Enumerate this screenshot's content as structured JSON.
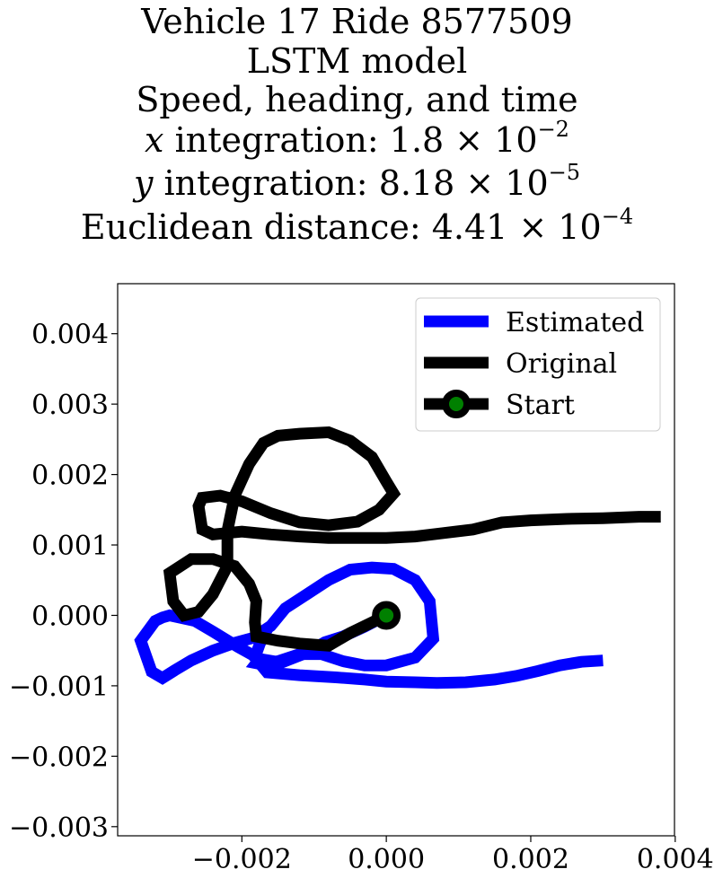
{
  "chart_data": {
    "type": "line",
    "title_lines": [
      "Vehicle 17 Ride 8577509",
      "LSTM model",
      "Speed, heading, and time"
    ],
    "metrics": [
      {
        "var": "x",
        "label": " integration: ",
        "mantissa": "1.8",
        "exponent": "−2"
      },
      {
        "var": "y",
        "label": " integration: ",
        "mantissa": "8.18",
        "exponent": "−5"
      },
      {
        "var": "",
        "label": "Euclidean distance: ",
        "mantissa": "4.41",
        "exponent": "−4"
      }
    ],
    "xlabel": "",
    "ylabel": "",
    "xlim": [
      -0.00372,
      0.00399
    ],
    "ylim": [
      -0.00313,
      0.00471
    ],
    "x_ticks": [
      -0.002,
      0.0,
      0.002,
      0.004
    ],
    "x_tick_labels": [
      "−0.002",
      "0.000",
      "0.002",
      "0.004"
    ],
    "y_ticks": [
      0.004,
      0.003,
      0.002,
      0.001,
      0.0,
      -0.001,
      -0.002,
      -0.003
    ],
    "y_tick_labels": [
      "0.004",
      "0.003",
      "0.002",
      "0.001",
      "0.000",
      "−0.001",
      "−0.002",
      "−0.003"
    ],
    "grid": false,
    "legend_position": "top-right",
    "series": [
      {
        "name": "Estimated",
        "color": "#0000ff",
        "points": [
          [
            0.0,
            0.0
          ],
          [
            -0.0003,
            -0.00016
          ],
          [
            -0.0006,
            -0.0003
          ],
          [
            -0.00085,
            -0.00038
          ],
          [
            -0.0011,
            -0.00053
          ],
          [
            -0.00145,
            -0.00067
          ],
          [
            -0.00175,
            -0.00062
          ],
          [
            -0.00205,
            -0.00045
          ],
          [
            -0.0024,
            -0.00023
          ],
          [
            -0.00265,
            -8e-05
          ],
          [
            -0.003,
            0.0
          ],
          [
            -0.0031,
            -3e-05
          ],
          [
            -0.0032,
            -8e-05
          ],
          [
            -0.0034,
            -0.00036
          ],
          [
            -0.00325,
            -0.0008
          ],
          [
            -0.0031,
            -0.00089
          ],
          [
            -0.00293,
            -0.00078
          ],
          [
            -0.0027,
            -0.00064
          ],
          [
            -0.0024,
            -0.0005
          ],
          [
            -0.0021,
            -0.00039
          ],
          [
            -0.00185,
            -0.00032
          ],
          [
            -0.0017,
            -0.0003
          ],
          [
            -0.00175,
            -0.0004
          ],
          [
            -0.00182,
            -0.0006
          ],
          [
            -0.00165,
            -0.00081
          ],
          [
            -0.0012,
            -0.00085
          ],
          [
            -0.0007,
            -0.00088
          ],
          [
            -0.0003,
            -0.00091
          ],
          [
            0.0,
            -0.00094
          ],
          [
            0.0004,
            -0.00095
          ],
          [
            0.0007,
            -0.00096
          ],
          [
            0.0011,
            -0.00095
          ],
          [
            0.0015,
            -0.00091
          ],
          [
            0.0018,
            -0.00086
          ],
          [
            0.0021,
            -0.00079
          ],
          [
            0.0024,
            -0.00071
          ],
          [
            0.0027,
            -0.00066
          ],
          [
            0.003,
            -0.00064
          ]
        ],
        "overlay_points": [
          [
            -0.00185,
            -0.00032
          ],
          [
            -0.0016,
            -0.00015
          ],
          [
            -0.0014,
            0.0001
          ],
          [
            -0.0011,
            0.0003
          ],
          [
            -0.0008,
            0.0005
          ],
          [
            -0.0005,
            0.00065
          ],
          [
            -0.0002,
            0.00068
          ],
          [
            0.0001,
            0.00066
          ],
          [
            0.0004,
            0.0005
          ],
          [
            0.0006,
            0.0002
          ],
          [
            0.00065,
            -0.00033
          ],
          [
            0.0004,
            -0.0006
          ],
          [
            0.0,
            -0.00071
          ],
          [
            -0.0003,
            -0.00071
          ],
          [
            -0.0006,
            -0.00065
          ],
          [
            -0.0009,
            -0.00055
          ],
          [
            -0.0012,
            -0.00055
          ],
          [
            -0.0015,
            -0.00065
          ],
          [
            -0.0017,
            -0.0007
          ],
          [
            -0.0018,
            -0.00068
          ],
          [
            -0.0017,
            -0.00055
          ]
        ]
      },
      {
        "name": "Original",
        "color": "#000000",
        "points": [
          [
            0.0,
            0.0
          ],
          [
            -0.0002,
            -0.0001
          ],
          [
            -0.0005,
            -0.00025
          ],
          [
            -0.0008,
            -0.00043
          ],
          [
            -0.0012,
            -0.0004
          ],
          [
            -0.0015,
            -0.00036
          ],
          [
            -0.0018,
            -0.0003
          ],
          [
            -0.00182,
            -0.0001
          ],
          [
            -0.0018,
            0.0002
          ],
          [
            -0.0019,
            0.00045
          ],
          [
            -0.0021,
            0.0007
          ],
          [
            -0.0024,
            0.0008
          ],
          [
            -0.0027,
            0.0008
          ],
          [
            -0.003,
            0.0006
          ],
          [
            -0.00295,
            0.0002
          ],
          [
            -0.0028,
            0.0
          ],
          [
            -0.0026,
            5e-05
          ],
          [
            -0.0024,
            0.0003
          ],
          [
            -0.0022,
            0.0007
          ],
          [
            -0.0022,
            0.0012
          ],
          [
            -0.0021,
            0.0017
          ],
          [
            -0.0019,
            0.00215
          ],
          [
            -0.0017,
            0.00245
          ],
          [
            -0.0015,
            0.00255
          ],
          [
            -0.0012,
            0.00258
          ],
          [
            -0.0008,
            0.0026
          ],
          [
            -0.0005,
            0.00248
          ],
          [
            -0.0002,
            0.00225
          ],
          [
            0.0,
            0.0019
          ],
          [
            0.0001,
            0.00173
          ],
          [
            -0.0001,
            0.0015
          ],
          [
            -0.0004,
            0.00133
          ],
          [
            -0.0008,
            0.00128
          ],
          [
            -0.0012,
            0.00132
          ],
          [
            -0.0016,
            0.00145
          ],
          [
            -0.002,
            0.00162
          ],
          [
            -0.0023,
            0.0017
          ],
          [
            -0.00255,
            0.00167
          ],
          [
            -0.0026,
            0.00155
          ],
          [
            -0.00255,
            0.00122
          ],
          [
            -0.0024,
            0.00115
          ],
          [
            -0.002,
            0.00119
          ],
          [
            -0.0016,
            0.00115
          ],
          [
            -0.0012,
            0.00112
          ],
          [
            -0.0008,
            0.0011
          ],
          [
            -0.0004,
            0.0011
          ],
          [
            0.0,
            0.0011
          ],
          [
            0.0004,
            0.00112
          ],
          [
            0.0008,
            0.00117
          ],
          [
            0.0012,
            0.00122
          ],
          [
            0.0016,
            0.00132
          ],
          [
            0.002,
            0.00135
          ],
          [
            0.0025,
            0.00137
          ],
          [
            0.003,
            0.00138
          ],
          [
            0.0035,
            0.0014
          ],
          [
            0.0038,
            0.0014
          ]
        ]
      }
    ],
    "start_marker": {
      "name": "Start",
      "x": 0.0,
      "y": 0.0,
      "fill": "#008000",
      "edge": "#000000"
    }
  }
}
